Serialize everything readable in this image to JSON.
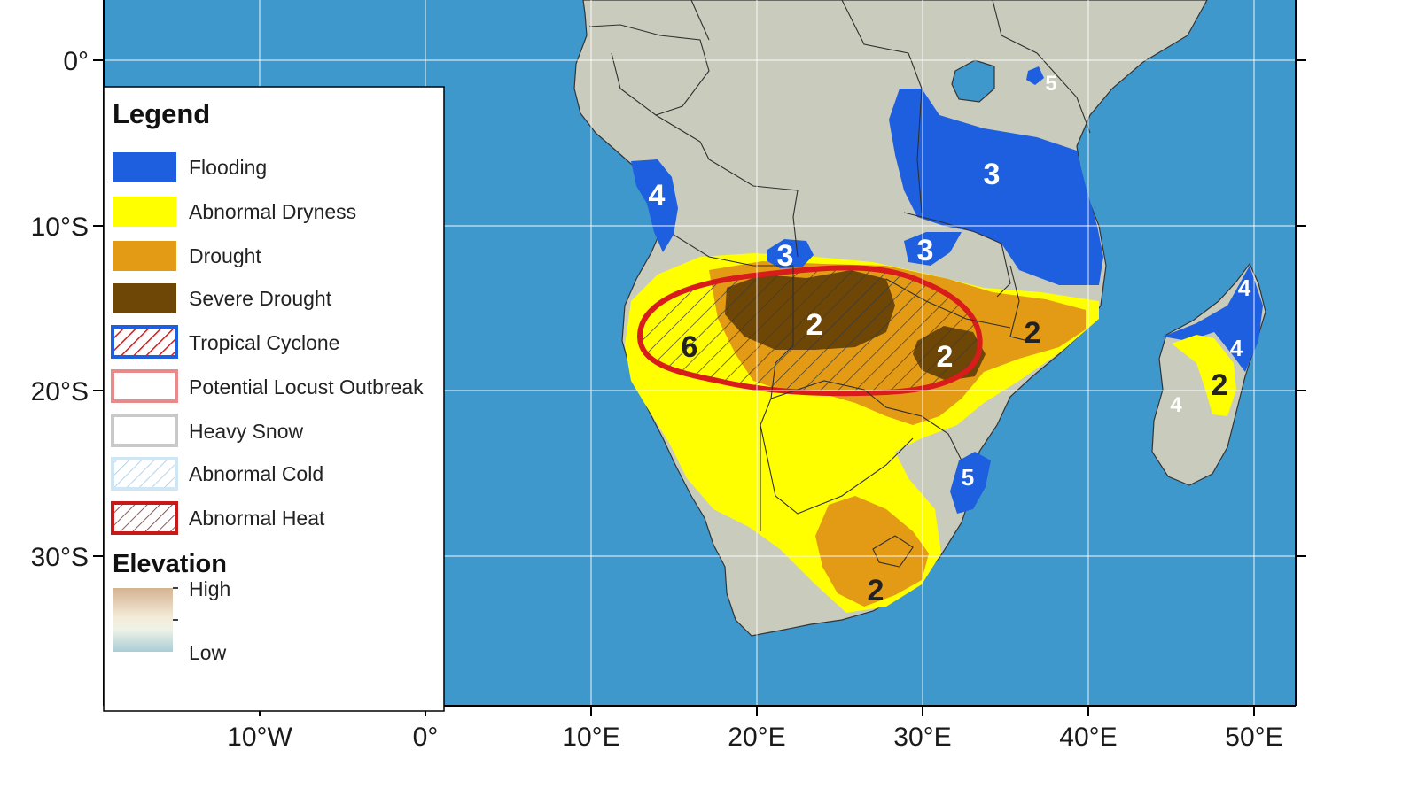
{
  "axes": {
    "lat_labels": [
      "0°",
      "10°S",
      "20°S",
      "30°S"
    ],
    "lon_labels": [
      "10°W",
      "0°",
      "10°E",
      "20°E",
      "30°E",
      "40°E",
      "50°E"
    ]
  },
  "legend": {
    "title": "Legend",
    "items": [
      {
        "label": "Flooding",
        "color": "#1e5fe0"
      },
      {
        "label": "Abnormal Dryness",
        "color": "#ffff00"
      },
      {
        "label": "Drought",
        "color": "#e39a14"
      },
      {
        "label": "Severe Drought",
        "color": "#6e4606"
      },
      {
        "label": "Tropical Cyclone",
        "color": "#d92121"
      },
      {
        "label": "Potential Locust Outbreak",
        "color": "#e88a8a"
      },
      {
        "label": "Heavy Snow",
        "color": "#c9c9c9"
      },
      {
        "label": "Abnormal Cold",
        "color": "#cfe6f5"
      },
      {
        "label": "Abnormal Heat",
        "color": "#c81818"
      }
    ],
    "elevation": {
      "title": "Elevation",
      "high": "High",
      "low": "Low"
    }
  },
  "zone_labels": {
    "z5_kenya": "5",
    "z3_east": "3",
    "z4_angola": "4",
    "z3_zambia": "3",
    "z3_malawi": "3",
    "z2_center": "2",
    "z6_namibia": "6",
    "z2_zimbabwe": "2",
    "z2_mozambique": "2",
    "z5_southeast": "5",
    "z2_southafrica": "2",
    "z4_madagascar_ne": "4",
    "z4_madagascar_e": "4",
    "z2_madagascar": "2",
    "z4_madagascar_w": "4"
  },
  "colors": {
    "ocean": "#3f98cc",
    "land": "#c9cbbd",
    "flooding": "#1e5fe0",
    "dryness": "#ffff00",
    "drought": "#e39a14",
    "severe_drought": "#6e4606",
    "heat_outline": "#d81c1c"
  }
}
